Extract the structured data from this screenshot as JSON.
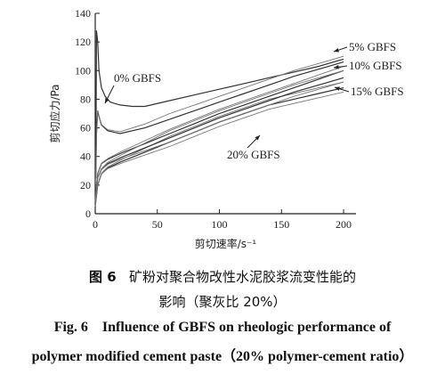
{
  "chart_data": {
    "type": "line",
    "xlabel": "剪切速率/s⁻¹",
    "ylabel": "剪切应力/Pa",
    "xlim": [
      0,
      210
    ],
    "ylim": [
      0,
      140
    ],
    "xticks": [
      0,
      50,
      100,
      150,
      200
    ],
    "yticks": [
      0,
      20,
      40,
      60,
      80,
      100,
      120,
      140
    ],
    "grid": false,
    "series": [
      {
        "name": "0% GBFS",
        "x": [
          0.5,
          1,
          2,
          3,
          5,
          8,
          12,
          20,
          30,
          40,
          60,
          80,
          100,
          120,
          140,
          160,
          180,
          200
        ],
        "y": [
          30,
          128,
          120,
          100,
          88,
          82,
          78,
          76,
          75,
          75,
          79,
          83,
          87,
          91,
          95,
          99,
          103,
          108
        ]
      },
      {
        "name": "5% GBFS",
        "x": [
          0.5,
          1,
          2,
          3,
          5,
          10,
          20,
          40,
          60,
          80,
          100,
          120,
          140,
          160,
          180,
          200
        ],
        "y": [
          25,
          55,
          72,
          68,
          62,
          58,
          56,
          60,
          66,
          72,
          78,
          84,
          90,
          96,
          101,
          106
        ]
      },
      {
        "name": "10% GBFS",
        "x": [
          0,
          2,
          5,
          10,
          20,
          40,
          60,
          80,
          100,
          120,
          140,
          160,
          180,
          200
        ],
        "y": [
          10,
          28,
          35,
          38,
          42,
          49,
          56,
          63,
          70,
          76,
          82,
          88,
          94,
          100
        ]
      },
      {
        "name": "15% GBFS",
        "x": [
          0,
          2,
          5,
          10,
          20,
          40,
          60,
          80,
          100,
          120,
          140,
          160,
          180,
          200
        ],
        "y": [
          5,
          20,
          28,
          32,
          36,
          43,
          50,
          57,
          64,
          70,
          76,
          80,
          84,
          88
        ]
      },
      {
        "name": "20% GBFS",
        "x": [
          0,
          2,
          5,
          10,
          20,
          40,
          60,
          80,
          100,
          120,
          140,
          160,
          180,
          200
        ],
        "y": [
          8,
          25,
          31,
          35,
          39,
          46,
          53,
          60,
          67,
          73,
          79,
          85,
          90,
          95
        ]
      }
    ],
    "annotations": [
      "0% GBFS",
      "5% GBFS",
      "10% GBFS",
      "15% GBFS",
      "20% GBFS"
    ]
  },
  "caption": {
    "cn_fig": "图 6",
    "cn_line1": "矿粉对聚合物改性水泥胶浆流变性能的",
    "cn_line2": "影响（聚灰比 20%）",
    "en_fig": "Fig. 6",
    "en_line1": "Influence of GBFS on rheologic performance of",
    "en_line2": "polymer modified cement paste（20% polymer-cement ratio）"
  }
}
